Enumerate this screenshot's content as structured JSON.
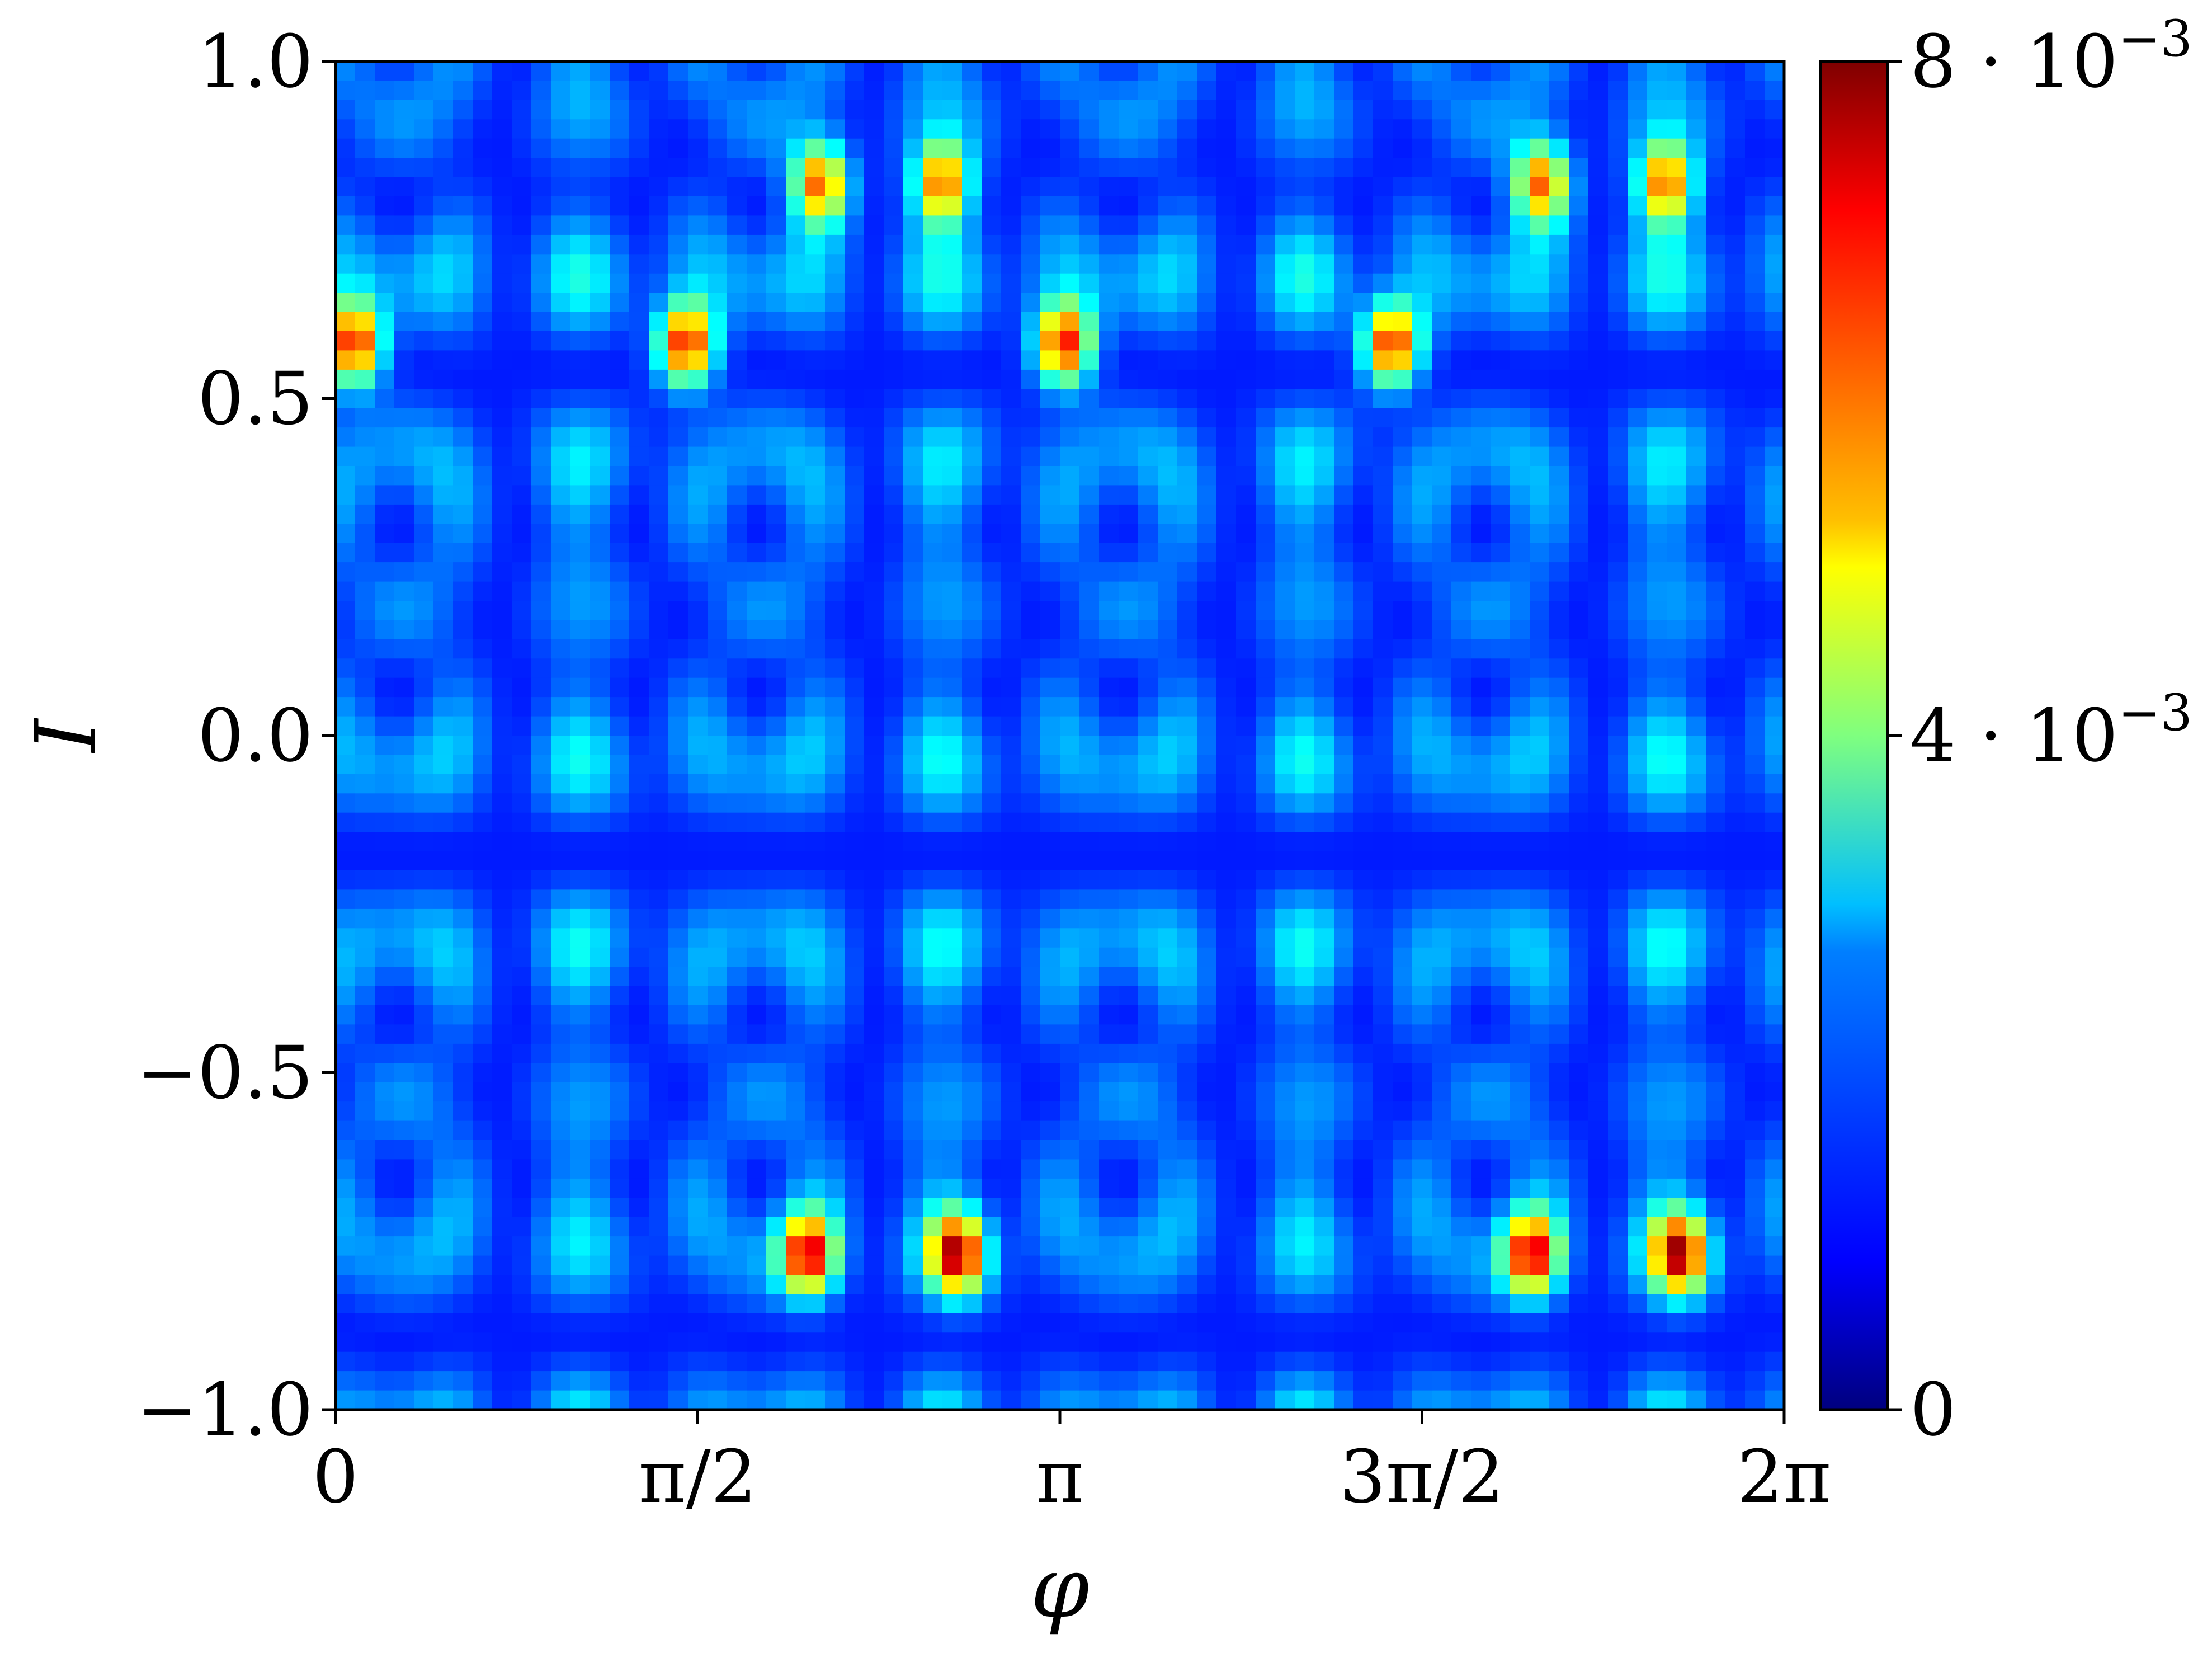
{
  "chart_data": {
    "type": "heatmap",
    "title": "",
    "xlabel": "φ",
    "ylabel": "I",
    "xlim": [
      0,
      6.283185307
    ],
    "ylim": [
      -1.0,
      1.0
    ],
    "x_ticks": [
      {
        "value": 0,
        "label": "0"
      },
      {
        "value": 1.570796327,
        "label": "π/2"
      },
      {
        "value": 3.141592654,
        "label": "π"
      },
      {
        "value": 4.71238898,
        "label": "3π/2"
      },
      {
        "value": 6.283185307,
        "label": "2π"
      }
    ],
    "y_ticks": [
      {
        "value": 1.0,
        "label": "1.0"
      },
      {
        "value": 0.5,
        "label": "0.5"
      },
      {
        "value": 0.0,
        "label": "0.0"
      },
      {
        "value": -0.5,
        "label": "−0.5"
      },
      {
        "value": -1.0,
        "label": "−1.0"
      }
    ],
    "colorbar": {
      "colormap": "jet",
      "range": [
        0,
        0.008
      ],
      "ticks": [
        {
          "value": 0.008,
          "base": "8 · 10",
          "exp": "−3"
        },
        {
          "value": 0.004,
          "base": "4 · 10",
          "exp": "−3"
        },
        {
          "value": 0,
          "base": "0",
          "exp": ""
        }
      ]
    },
    "peaks_approx": [
      {
        "phi": 0.08,
        "I": 0.58,
        "value": 0.0075
      },
      {
        "phi": 1.52,
        "I": 0.58,
        "value": 0.0075
      },
      {
        "phi": 3.16,
        "I": 0.58,
        "value": 0.0075
      },
      {
        "phi": 4.58,
        "I": 0.58,
        "value": 0.0075
      },
      {
        "phi": 2.05,
        "I": -0.77,
        "value": 0.0072
      },
      {
        "phi": 2.7,
        "I": -0.77,
        "value": 0.0072
      },
      {
        "phi": 5.19,
        "I": -0.77,
        "value": 0.0072
      },
      {
        "phi": 5.83,
        "I": -0.77,
        "value": 0.0072
      },
      {
        "phi": 2.1,
        "I": 0.82,
        "value": 0.0068
      },
      {
        "phi": 2.63,
        "I": 0.82,
        "value": 0.0068
      },
      {
        "phi": 5.23,
        "I": 0.82,
        "value": 0.0068
      },
      {
        "phi": 5.77,
        "I": 0.82,
        "value": 0.0068
      }
    ],
    "grid": false,
    "legend": "colorbar-right"
  }
}
